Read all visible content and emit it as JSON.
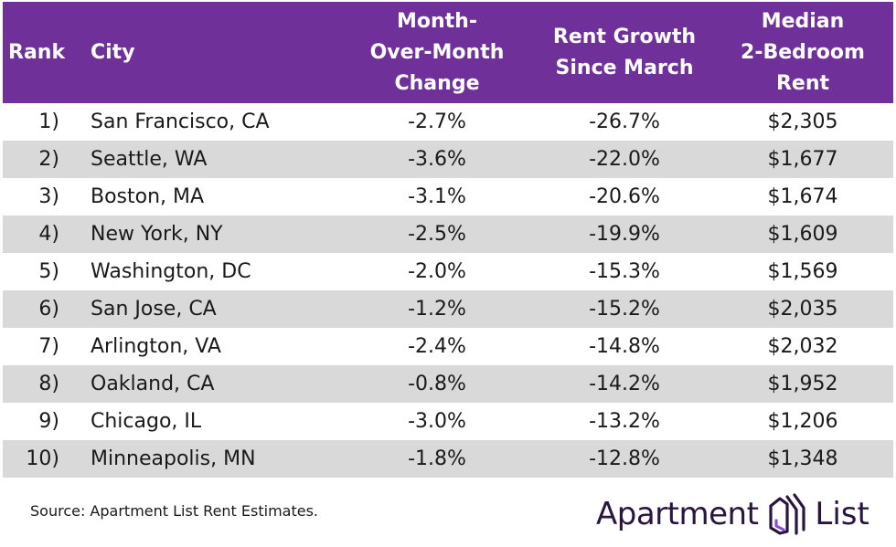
{
  "chart_data": {
    "type": "table",
    "columns": [
      "Rank",
      "City",
      "Month-Over-Month Change",
      "Rent Growth Since March",
      "Median 2-Bedroom Rent"
    ],
    "header_lines": {
      "rank": "Rank",
      "city": "City",
      "mom": [
        "Month-",
        "Over-Month",
        "Change"
      ],
      "growth": [
        "Rent Growth",
        "Since March"
      ],
      "rent": [
        "Median",
        "2-Bedroom",
        "Rent"
      ]
    },
    "rows": [
      {
        "rank": "1)",
        "city": "San Francisco, CA",
        "mom": "-2.7%",
        "growth": "-26.7%",
        "rent": "$2,305"
      },
      {
        "rank": "2)",
        "city": "Seattle, WA",
        "mom": "-3.6%",
        "growth": "-22.0%",
        "rent": "$1,677"
      },
      {
        "rank": "3)",
        "city": "Boston, MA",
        "mom": "-3.1%",
        "growth": "-20.6%",
        "rent": "$1,674"
      },
      {
        "rank": "4)",
        "city": "New York, NY",
        "mom": "-2.5%",
        "growth": "-19.9%",
        "rent": "$1,609"
      },
      {
        "rank": "5)",
        "city": "Washington, DC",
        "mom": "-2.0%",
        "growth": "-15.3%",
        "rent": "$1,569"
      },
      {
        "rank": "6)",
        "city": "San Jose, CA",
        "mom": "-1.2%",
        "growth": "-15.2%",
        "rent": "$2,035"
      },
      {
        "rank": "7)",
        "city": "Arlington, VA",
        "mom": "-2.4%",
        "growth": "-14.8%",
        "rent": "$2,032"
      },
      {
        "rank": "8)",
        "city": "Oakland, CA",
        "mom": "-0.8%",
        "growth": "-14.2%",
        "rent": "$1,952"
      },
      {
        "rank": "9)",
        "city": "Chicago, IL",
        "mom": "-3.0%",
        "growth": "-13.2%",
        "rent": "$1,206"
      },
      {
        "rank": "10)",
        "city": "Minneapolis, MN",
        "mom": "-1.8%",
        "growth": "-12.8%",
        "rent": "$1,348"
      }
    ]
  },
  "footer": {
    "source": "Source: Apartment List Rent Estimates.",
    "logo_word1": "Apartment",
    "logo_word2": "List",
    "logo_icon": "house-stripes-icon"
  },
  "colors": {
    "header_bg": "#70309a",
    "header_text": "#ffffff",
    "alt_row_bg": "#d9d9d9",
    "logo_text": "#2a1540",
    "logo_accent": "#8a4fe0"
  }
}
